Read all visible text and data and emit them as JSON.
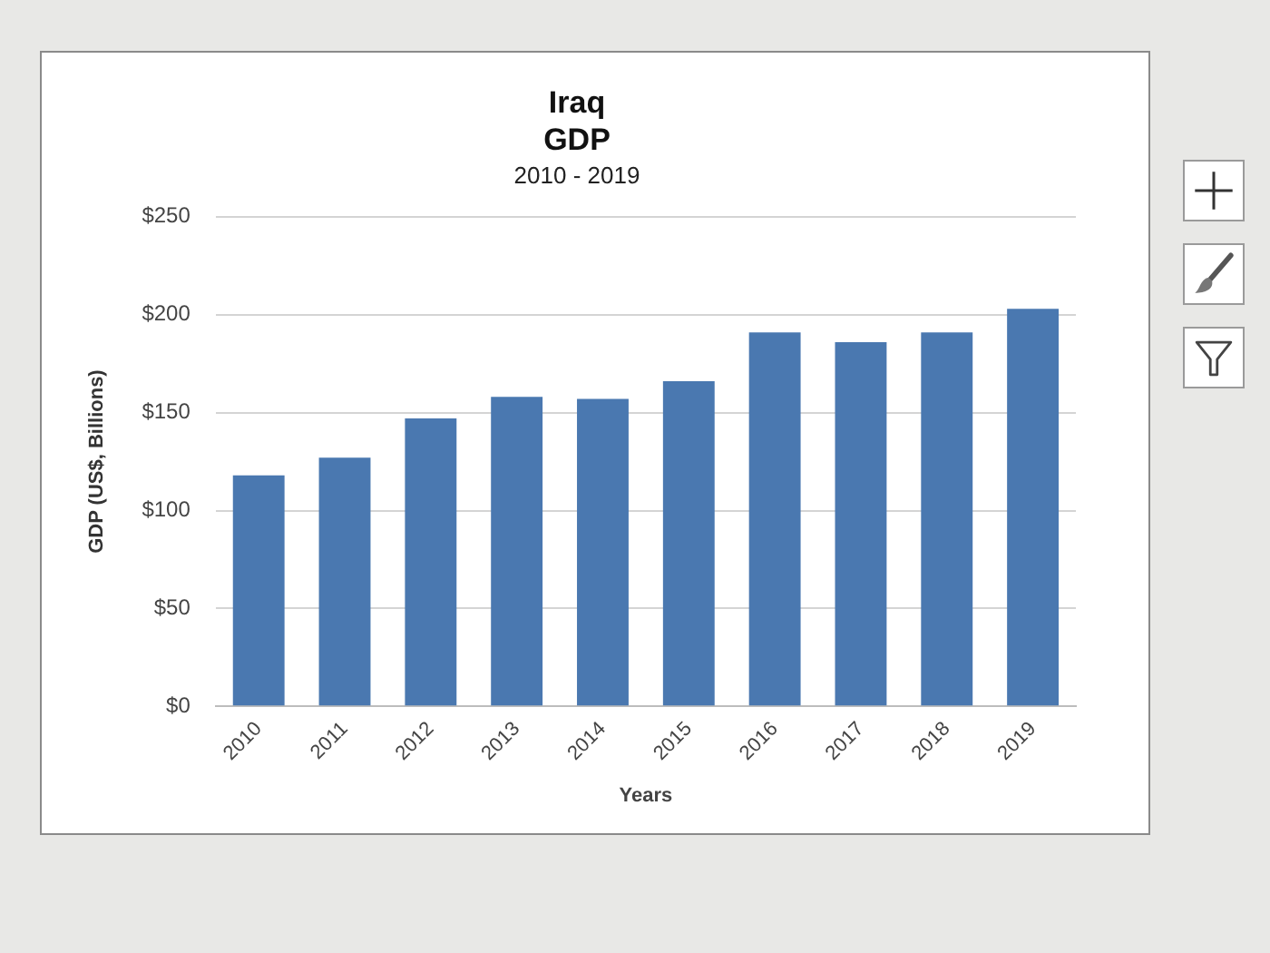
{
  "chart_data": {
    "type": "bar",
    "title": "Iraq\nGDP",
    "subtitle": "2010 - 2019",
    "xlabel": "Years",
    "ylabel": "GDP (US$, Billions)",
    "categories": [
      "2010",
      "2011",
      "2012",
      "2013",
      "2014",
      "2015",
      "2016",
      "2017",
      "2018",
      "2019"
    ],
    "values": [
      118,
      127,
      147,
      158,
      157,
      166,
      191,
      186,
      191,
      203
    ],
    "color": "#4a78b0",
    "ylim": [
      0,
      250
    ],
    "yticks": [
      {
        "value": 0,
        "label": "$0"
      },
      {
        "value": 50,
        "label": "$50"
      },
      {
        "value": 100,
        "label": "$100"
      },
      {
        "value": 150,
        "label": "$150"
      },
      {
        "value": 200,
        "label": "$200"
      },
      {
        "value": 250,
        "label": "$250"
      }
    ],
    "grid": "y"
  }
}
